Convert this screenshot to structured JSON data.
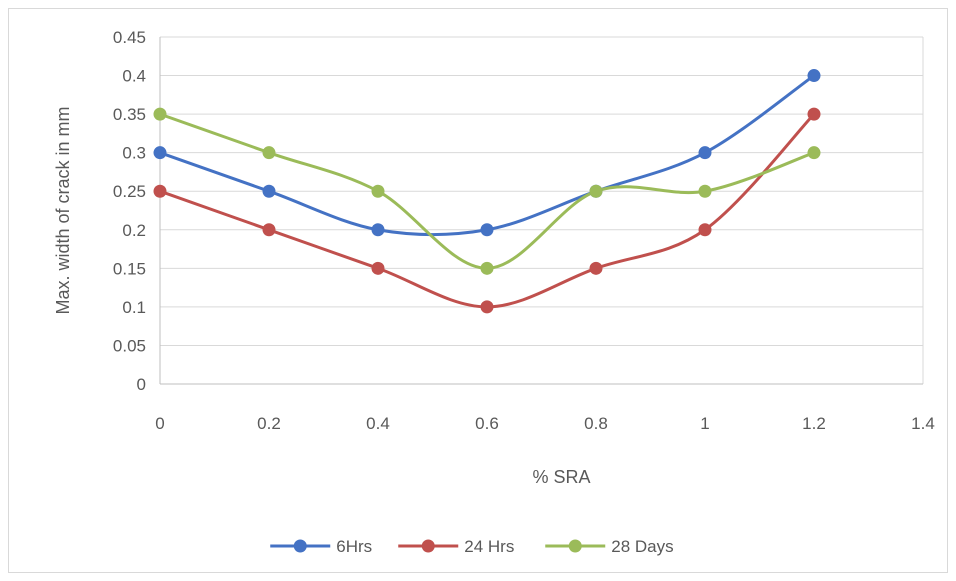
{
  "chart_data": {
    "type": "line",
    "title": "",
    "xlabel": "% SRA",
    "ylabel": "Max. width  of crack  in mm",
    "x": [
      0,
      0.2,
      0.4,
      0.6,
      0.8,
      1,
      1.2
    ],
    "xlim": [
      0,
      1.4
    ],
    "ylim": [
      0,
      0.45
    ],
    "x_ticks": [
      "0",
      "0.2",
      "0.4",
      "0.6",
      "0.8",
      "1",
      "1.2",
      "1.4"
    ],
    "y_ticks": [
      "0",
      "0.05",
      "0.1",
      "0.15",
      "0.2",
      "0.25",
      "0.3",
      "0.35",
      "0.4",
      "0.45"
    ],
    "grid": "horizontal",
    "smooth": true,
    "legend_position": "bottom",
    "series": [
      {
        "name": "6Hrs",
        "color": "#4472c4",
        "values": [
          0.3,
          0.25,
          0.2,
          0.2,
          0.25,
          0.3,
          0.4
        ]
      },
      {
        "name": "24 Hrs",
        "color": "#c0504d",
        "values": [
          0.25,
          0.2,
          0.15,
          0.1,
          0.15,
          0.2,
          0.35
        ]
      },
      {
        "name": "28 Days",
        "color": "#9bbb59",
        "values": [
          0.35,
          0.3,
          0.25,
          0.15,
          0.25,
          0.25,
          0.3
        ]
      }
    ]
  }
}
